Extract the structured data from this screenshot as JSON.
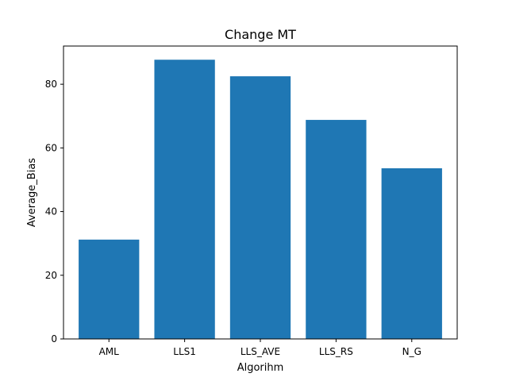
{
  "chart_data": {
    "type": "bar",
    "title": "Change MT",
    "xlabel": "Algorihm",
    "ylabel": "Average_Bias",
    "categories": [
      "AML",
      "LLS1",
      "LLS_AVE",
      "LLS_RS",
      "N_G"
    ],
    "values": [
      31.2,
      87.7,
      82.5,
      68.8,
      53.6
    ],
    "ylim": [
      0,
      92
    ],
    "yticks": [
      0,
      20,
      40,
      60,
      80
    ],
    "bar_color": "#1f77b4",
    "grid": false,
    "legend": "none"
  }
}
